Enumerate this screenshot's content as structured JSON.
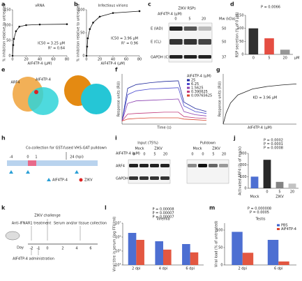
{
  "a": {
    "label": "a",
    "chart": {
      "type": "line",
      "title": "vRNA",
      "xlabel": "AIF4TP-4 (μM)",
      "ylabel": "% inhibition relative to untreated",
      "x": [
        0,
        1,
        2,
        5,
        10,
        20,
        40,
        80
      ],
      "series": [
        {
          "name": "vRNA",
          "color": "#111",
          "values": [
            0,
            35,
            55,
            80,
            95,
            100,
            102,
            103
          ]
        }
      ],
      "xlim": [
        0,
        80
      ],
      "ylim": [
        0,
        150
      ],
      "xticks": [
        0,
        20,
        40,
        60,
        80
      ],
      "yticks": [
        0,
        50,
        100,
        150
      ],
      "annotations": [
        "IC50 = 3.25 μM",
        "R² = 0.64"
      ]
    }
  },
  "b": {
    "label": "b",
    "chart": {
      "type": "line",
      "title": "Infectious virions",
      "xlabel": "AIF4TP-4 (μM)",
      "ylabel": "% inhibition relative to untreated",
      "x": [
        0,
        1,
        2,
        5,
        10,
        20,
        40,
        80
      ],
      "series": [
        {
          "name": "Infectious virions",
          "color": "#111",
          "values": [
            0,
            20,
            38,
            58,
            72,
            85,
            93,
            97
          ]
        }
      ],
      "xlim": [
        0,
        80
      ],
      "ylim": [
        0,
        100
      ],
      "xticks": [
        0,
        20,
        40,
        60,
        80
      ],
      "yticks": [
        0,
        50,
        100
      ],
      "annotations": [
        "IC50 = 3.96 μM",
        "R² = 0.96"
      ]
    }
  },
  "c": {
    "label": "c",
    "header": "ZIKV RSPs",
    "treatment": "AIF4TP-4 (μM)",
    "doses": [
      "0",
      "5",
      "20"
    ],
    "rows": [
      "E (IAD)",
      "E (CL)",
      "GAPDH (CL)"
    ],
    "mw_title": "Mw (kDa)",
    "mw": [
      "50",
      "50",
      "37"
    ]
  },
  "d": {
    "label": "d",
    "chart": {
      "type": "bar",
      "ylabel": "RSP secretion (% of 0 μM)",
      "categories": [
        "0",
        "5",
        "20"
      ],
      "unit": "μM",
      "values": [
        100,
        62,
        18
      ],
      "colors": [
        "#1a1a1a",
        "#e23b2e",
        "#8c8c8c"
      ],
      "ylim": [
        0,
        150
      ],
      "yticks": [
        0,
        50,
        100,
        150
      ],
      "annotations": [
        "P = 0.0066"
      ]
    }
  },
  "e": {
    "label": "e",
    "tags": [
      "ARF4",
      "AIF4TP-4"
    ]
  },
  "f": {
    "label": "f",
    "chart": {
      "type": "line",
      "xlabel": "Time (s)",
      "ylabel": "Response units (RU)",
      "legend_title": "AIF4TP-4 (μM)",
      "legend": true,
      "x": [
        0,
        20,
        50,
        100,
        150,
        200,
        220,
        260,
        300
      ],
      "series": [
        {
          "name": "25",
          "color": "#1f2a9c",
          "values": [
            0,
            52,
            58,
            61,
            63,
            64,
            30,
            20,
            15
          ]
        },
        {
          "name": "6.25",
          "color": "#4b4bd0",
          "values": [
            0,
            42,
            48,
            51,
            52,
            53,
            24,
            15,
            12
          ]
        },
        {
          "name": "1.5625",
          "color": "#8a3fb0",
          "values": [
            0,
            28,
            32,
            33,
            34,
            35,
            15,
            10,
            8
          ]
        },
        {
          "name": "0.390625",
          "color": "#c03a7a",
          "values": [
            0,
            11,
            12,
            13,
            14,
            14,
            7,
            5,
            4
          ]
        },
        {
          "name": "0.09765625",
          "color": "#d9462f",
          "values": [
            0,
            3,
            4,
            5,
            5,
            5,
            3,
            2,
            1
          ]
        }
      ],
      "xlim": [
        0,
        300
      ],
      "ylim": [
        -5,
        75
      ]
    }
  },
  "g": {
    "label": "g",
    "chart": {
      "type": "line",
      "xlabel": "AIF4TP-4 (μM)",
      "ylabel": "Response units (RU)",
      "x": [
        0,
        2,
        5,
        10,
        20,
        30,
        40,
        50
      ],
      "series": [
        {
          "name": "fit",
          "color": "#222",
          "values": [
            0,
            22,
            42,
            58,
            70,
            75,
            78,
            80
          ]
        }
      ],
      "xlim": [
        0,
        50
      ],
      "ylim": [
        0,
        100
      ],
      "annotations": [
        "KD = 3.96 μM"
      ]
    }
  },
  "h": {
    "label": "h",
    "days": [
      "-4",
      "0",
      "1"
    ],
    "end": "24 (hpi)",
    "note": "Co-collection for GST-fused VHS-GAT pulldown",
    "legend": [
      "AIF4TP-4",
      "ZIKV"
    ]
  },
  "i": {
    "label": "i",
    "groups": [
      "Input (75%)",
      "Pulldown"
    ],
    "conditions": [
      "Mock",
      "ZIKV",
      "Mock",
      "ZIKV"
    ],
    "treatment": "AIF4TP-4 (μM)",
    "doses": [
      "0",
      "0",
      "5",
      "20",
      "0",
      "0",
      "5",
      "20"
    ],
    "rows": [
      "ARF4",
      "GAPDH"
    ]
  },
  "j": {
    "label": "j",
    "chart": {
      "type": "bar",
      "ylabel": "Activated ARF4 (% of mock)",
      "categories": [
        null,
        "0",
        "5",
        "20"
      ],
      "groups": [
        "Mock",
        "ZIKV"
      ],
      "values": [
        100,
        245,
        55,
        40
      ],
      "colors": [
        "#3a5fcd",
        "#111111",
        "#777777",
        "#bdbdbd"
      ],
      "ylim": [
        0,
        300
      ],
      "yticks": [
        0,
        100,
        200,
        300
      ],
      "annotations": [
        "P = 0.0002",
        "P = 0.0001",
        "P = 0.0008"
      ]
    }
  },
  "k": {
    "label": "k",
    "day": "Day",
    "days": [
      "-2",
      "-1",
      "0",
      "2",
      "4",
      "6"
    ],
    "events": [
      "ZIKV challenge",
      "Anti-IFNAR1 treatment",
      "Serum and/or tissue collection",
      "AIF4TP-4 administration"
    ]
  },
  "l": {
    "label": "l",
    "chart": {
      "type": "bar",
      "title": "Viremia",
      "ylabel": "Viral titre in serum (log FFU/ml)",
      "categories": [
        "2 dpi",
        "4 dpi",
        "6 dpi"
      ],
      "series": [
        {
          "name": "PBS",
          "color": "#3a5fcd",
          "values": [
            6.3,
            5.7,
            5.5
          ]
        },
        {
          "name": "AIF4TP-4",
          "color": "#e0452c",
          "values": [
            5.8,
            5.1,
            4.9
          ]
        }
      ],
      "ylim": [
        4,
        7
      ],
      "yticks": [
        {
          "value": 4,
          "label": "10⁴"
        },
        {
          "value": 5,
          "label": "10⁵"
        },
        {
          "value": 6,
          "label": "10⁶"
        },
        {
          "value": 7,
          "label": "10⁷"
        }
      ],
      "annotations": [
        "P = 0.00008",
        "P = 0.00007",
        "P = 0.00007"
      ]
    }
  },
  "m": {
    "label": "m",
    "chart": {
      "type": "bar",
      "title": "Testis",
      "ylabel": "Viral load (% of untreated)",
      "legend": true,
      "categories": [
        "2 dpi",
        "6 dpi"
      ],
      "series": [
        {
          "name": "PBS",
          "color": "#3a5fcd",
          "values": [
            95,
            72
          ]
        },
        {
          "name": "AIF4TP-4",
          "color": "#e0452c",
          "values": [
            35,
            10
          ]
        }
      ],
      "ylim": [
        0,
        120
      ],
      "yticks": [
        0,
        50,
        100
      ],
      "annotations": [
        "P = 0.000008",
        "P = 0.0005"
      ]
    }
  }
}
